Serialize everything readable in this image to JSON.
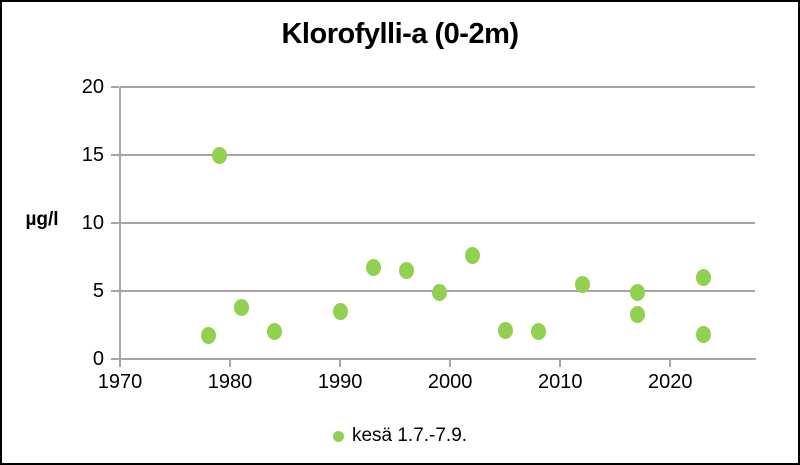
{
  "chart_data": {
    "type": "scatter",
    "title": "Klorofylli-a (0-2m)",
    "ylabel": "µg/l",
    "xlabel": "",
    "x_ticks": [
      1970,
      1980,
      1990,
      2000,
      2010,
      2020
    ],
    "y_ticks": [
      0,
      5,
      10,
      15,
      20
    ],
    "xlim": [
      1970,
      2027.7
    ],
    "ylim": [
      0,
      20
    ],
    "grid": "horizontal-only",
    "legend_position": "bottom-center",
    "series": [
      {
        "name": "kesä 1.7.-7.9.",
        "marker_color": "#92d050",
        "points": [
          {
            "x": 1978,
            "y": 1.7
          },
          {
            "x": 1979,
            "y": 15.0
          },
          {
            "x": 1981,
            "y": 3.8
          },
          {
            "x": 1984,
            "y": 2.0
          },
          {
            "x": 1990,
            "y": 3.5
          },
          {
            "x": 1993,
            "y": 6.7
          },
          {
            "x": 1996,
            "y": 6.5
          },
          {
            "x": 1999,
            "y": 4.9
          },
          {
            "x": 2002,
            "y": 7.6
          },
          {
            "x": 2005,
            "y": 2.1
          },
          {
            "x": 2008,
            "y": 2.0
          },
          {
            "x": 2012,
            "y": 5.5
          },
          {
            "x": 2017,
            "y": 4.9
          },
          {
            "x": 2017,
            "y": 3.3
          },
          {
            "x": 2023,
            "y": 6.0
          },
          {
            "x": 2023,
            "y": 1.8
          }
        ]
      }
    ],
    "colors": {
      "marker": "#92d050",
      "grid": "#a6a6a6",
      "axis": "#a6a6a6",
      "text": "#000000",
      "frame_border": "#000000",
      "background": "#ffffff"
    }
  }
}
